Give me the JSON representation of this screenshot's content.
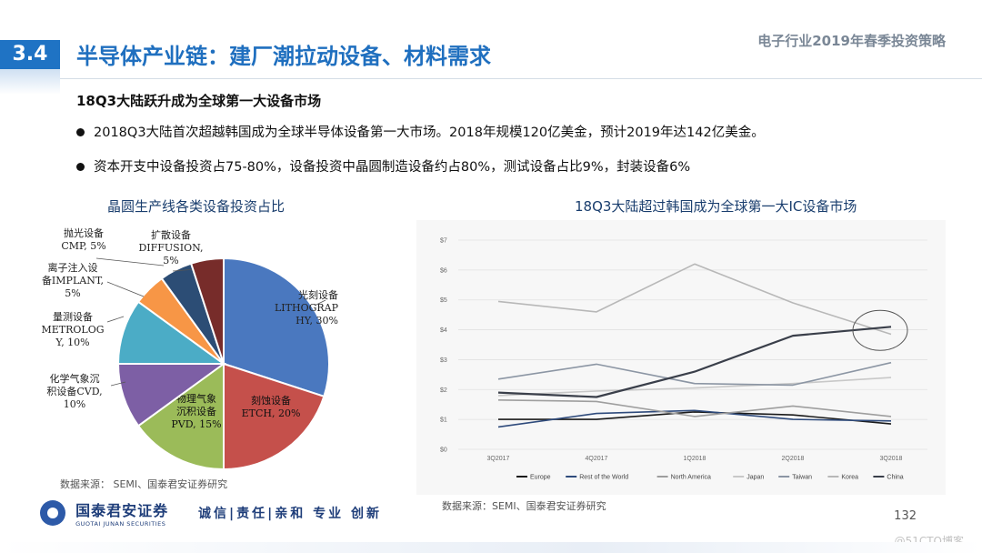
{
  "header": {
    "section_number": "3.4",
    "section_title": "半导体产业链：建厂潮拉动设备、材料需求",
    "report_title": "电子行业2019年春季投资策略"
  },
  "content": {
    "subheading": "18Q3大陆跃升成为全球第一大设备市场",
    "bullets": [
      "2018Q3大陆首次超越韩国成为全球半导体设备第一大市场。2018年规模120亿美金，预计2019年达142亿美金。",
      "资本开支中设备投资占75-80%，设备投资中晶圆制造设备约占80%，测试设备占比9%，封装设备6%"
    ]
  },
  "pie_chart": {
    "title": "晶圆生产线各类设备投资占比",
    "source": "数据来源：  SEMI、国泰君安证券研究"
  },
  "line_chart": {
    "title": "18Q3大陆超过韩国成为全球第一大IC设备市场",
    "source": "数据来源：SEMI、国泰君安证券研究"
  },
  "chart_data": [
    {
      "type": "pie",
      "title": "晶圆生产线各类设备投资占比",
      "slices": [
        {
          "label": "光刻设备 LITHOGRAPHY",
          "label_lines": [
            "光刻设备",
            "LITHOGRAP",
            "HY, 30%"
          ],
          "value": 30,
          "color": "#4a78bf"
        },
        {
          "label": "刻蚀设备 ETCH",
          "label_lines": [
            "刻蚀设备",
            "ETCH, 20%"
          ],
          "value": 20,
          "color": "#c5504b"
        },
        {
          "label": "物理气象沉积设备 PVD",
          "label_lines": [
            "物理气象",
            "沉积设备",
            "PVD, 15%"
          ],
          "value": 15,
          "color": "#9bbb59"
        },
        {
          "label": "化学气象沉积设备 CVD",
          "label_lines": [
            "化学气象沉",
            "积设备CVD,",
            "10%"
          ],
          "value": 10,
          "color": "#7d5fa5"
        },
        {
          "label": "量测设备 METROLOGY",
          "label_lines": [
            "量测设备",
            "METROLOG",
            "Y, 10%"
          ],
          "value": 10,
          "color": "#4bacc6"
        },
        {
          "label": "离子注入设备 IMPLANT",
          "label_lines": [
            "离子注入设",
            "备IMPLANT,",
            "5%"
          ],
          "value": 5,
          "color": "#f79646"
        },
        {
          "label": "扩散设备 DIFFUSION",
          "label_lines": [
            "扩散设备",
            "DIFFUSION,",
            "5%"
          ],
          "value": 5,
          "color": "#2c4d75"
        },
        {
          "label": "抛光设备 CMP",
          "label_lines": [
            "抛光设备",
            "CMP, 5%"
          ],
          "value": 5,
          "color": "#772c2a"
        }
      ]
    },
    {
      "type": "line",
      "title": "18Q3大陆超过韩国成为全球第一大IC设备市场",
      "categories": [
        "3Q2017",
        "4Q2017",
        "1Q2018",
        "2Q2018",
        "3Q2018"
      ],
      "y_ticks": [
        "$0",
        "$1",
        "$2",
        "$3",
        "$4",
        "$5",
        "$6",
        "$7"
      ],
      "ylim": [
        0,
        7
      ],
      "grid": true,
      "legend_position": "bottom",
      "highlight": {
        "category": "3Q2018",
        "value": 4.1
      },
      "series": [
        {
          "name": "Europe",
          "color": "#1a1a1a",
          "values": [
            1.0,
            1.0,
            1.25,
            1.15,
            0.85
          ]
        },
        {
          "name": "Rest of the World",
          "color": "#2f4b7c",
          "values": [
            0.75,
            1.2,
            1.3,
            1.0,
            0.95
          ]
        },
        {
          "name": "North America",
          "color": "#9e9e9e",
          "values": [
            1.65,
            1.6,
            1.1,
            1.45,
            1.1
          ]
        },
        {
          "name": "Japan",
          "color": "#c8c8c8",
          "values": [
            1.8,
            1.95,
            2.05,
            2.2,
            2.4
          ]
        },
        {
          "name": "Taiwan",
          "color": "#8c96a4",
          "values": [
            2.35,
            2.85,
            2.2,
            2.15,
            2.9
          ]
        },
        {
          "name": "Korea",
          "color": "#b8b8b8",
          "values": [
            4.95,
            4.6,
            6.2,
            4.9,
            3.85
          ]
        },
        {
          "name": "China",
          "color": "#3a3f4a",
          "values": [
            1.9,
            1.75,
            2.6,
            3.8,
            4.1
          ]
        }
      ]
    }
  ],
  "footer": {
    "logo_cn": "国泰君安证券",
    "logo_en": "GUOTAI JUNAN SECURITIES",
    "motto": "诚信|责任|亲和 专业 创新",
    "page_number": "132",
    "watermark": "@51CTO博客"
  }
}
